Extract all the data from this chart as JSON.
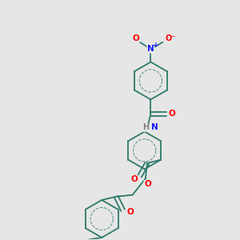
{
  "bg_color": "#e6e6e6",
  "bond_color": "#2d7a6a",
  "bond_width": 1.3,
  "atom_colors": {
    "O": "#ff0000",
    "N": "#1a1aff",
    "H": "#808080"
  },
  "font_size": 7.5
}
